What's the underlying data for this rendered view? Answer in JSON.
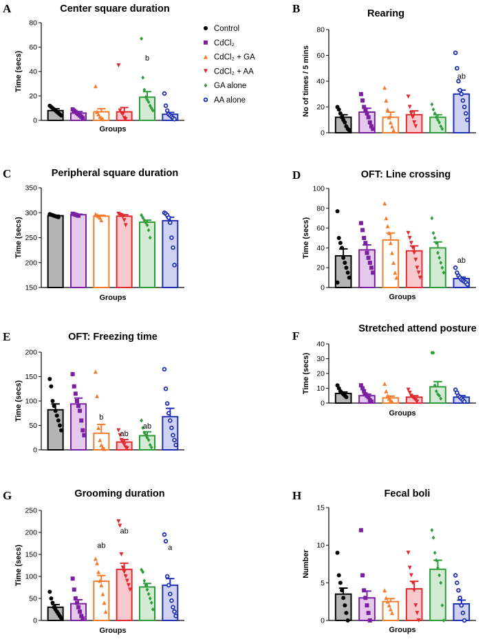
{
  "legend": {
    "entries": [
      {
        "label": "Control",
        "color": "#000000",
        "marker": "circle"
      },
      {
        "label": "CdCl₂",
        "color": "#7b1fa2",
        "marker": "square"
      },
      {
        "label": "CdCl₂ + GA",
        "color": "#f57c2b",
        "marker": "triangle-up"
      },
      {
        "label": "CdCl₂ + AA",
        "color": "#e0282e",
        "marker": "triangle-down"
      },
      {
        "label": "GA alone",
        "color": "#2e9c3a",
        "marker": "diamond"
      },
      {
        "label": "AA alone",
        "color": "#1d2fb5",
        "marker": "circle-open"
      }
    ]
  },
  "group_fill_colors": [
    "#b5b5b5",
    "#e3c9ea",
    "#ffffff",
    "#f8c9cc",
    "#d3ebd3",
    "#cfd3f2"
  ],
  "chart_data": [
    {
      "panel": "A",
      "type": "bar",
      "title": "Center square duration",
      "xlabel": "Groups",
      "ylabel": "Time (secs)",
      "ylim": [
        0,
        80
      ],
      "yticks": [
        0,
        20,
        40,
        60,
        80
      ],
      "means": [
        8,
        6,
        7,
        7,
        19,
        5
      ],
      "sem": [
        1.5,
        1.2,
        2.5,
        3.5,
        4.5,
        1.5
      ],
      "points": [
        [
          12,
          11,
          10,
          9,
          8,
          7,
          6,
          5,
          4
        ],
        [
          9,
          8,
          7,
          6,
          5,
          4,
          3,
          2
        ],
        [
          28,
          7,
          5,
          3,
          2,
          1
        ],
        [
          45,
          8,
          6,
          5,
          2,
          1
        ],
        [
          67,
          35,
          25,
          19,
          17,
          15,
          12,
          10,
          8
        ],
        [
          22,
          12,
          8,
          5,
          4,
          3,
          2,
          1
        ]
      ],
      "annotations": [
        {
          "group": 4,
          "text": "b",
          "value": 49
        }
      ],
      "show_legend": true
    },
    {
      "panel": "B",
      "type": "bar",
      "title": "Rearing",
      "xlabel": "",
      "ylabel": "No of times / 5 mins",
      "ylim": [
        0,
        80
      ],
      "yticks": [
        0,
        20,
        40,
        60,
        80
      ],
      "means": [
        12,
        16,
        12,
        14,
        12,
        30
      ],
      "sem": [
        2,
        3,
        4,
        3,
        2,
        3
      ],
      "points": [
        [
          20,
          18,
          15,
          12,
          10,
          8,
          5,
          3,
          2
        ],
        [
          30,
          25,
          20,
          18,
          15,
          12,
          8,
          5,
          3
        ],
        [
          35,
          25,
          18,
          12,
          8,
          5,
          2
        ],
        [
          28,
          20,
          15,
          12,
          8,
          5
        ],
        [
          22,
          18,
          15,
          12,
          10,
          8,
          5,
          3
        ],
        [
          62,
          50,
          40,
          33,
          30,
          25,
          20,
          15,
          10
        ]
      ],
      "annotations": [
        {
          "group": 5,
          "text": "ab",
          "value": 42
        }
      ],
      "show_legend": false
    },
    {
      "panel": "C",
      "type": "bar",
      "title": "Peripheral square duration",
      "xlabel": "Groups",
      "ylabel": "Time (secs)",
      "ylim": [
        150,
        350
      ],
      "yticks": [
        150,
        200,
        250,
        300,
        350
      ],
      "means": [
        294,
        296,
        293,
        293,
        281,
        284
      ],
      "sem": [
        1,
        1,
        2,
        3,
        4,
        7
      ],
      "points": [
        [
          297,
          296,
          295,
          294,
          293,
          292,
          291
        ],
        [
          298,
          297,
          296,
          295,
          294
        ],
        [
          297,
          295,
          293,
          290,
          285
        ],
        [
          298,
          296,
          295,
          292,
          285,
          275
        ],
        [
          295,
          290,
          285,
          280,
          275,
          265,
          250
        ],
        [
          300,
          298,
          295,
          290,
          280,
          250,
          230,
          195
        ]
      ],
      "annotations": [],
      "show_legend": false
    },
    {
      "panel": "D",
      "type": "bar",
      "title": "OFT: Line crossing",
      "xlabel": "Groups",
      "ylabel": "Time (secs)",
      "ylim": [
        0,
        100
      ],
      "yticks": [
        0,
        20,
        40,
        60,
        80,
        100
      ],
      "means": [
        32,
        38,
        48,
        37,
        40,
        9
      ],
      "sem": [
        7,
        5,
        7,
        5,
        6,
        1.5
      ],
      "points": [
        [
          77,
          50,
          45,
          40,
          30,
          25,
          20,
          15,
          10,
          5
        ],
        [
          65,
          58,
          50,
          45,
          35,
          30,
          25,
          20,
          15
        ],
        [
          85,
          70,
          62,
          55,
          45,
          35,
          25,
          15,
          10
        ],
        [
          55,
          50,
          45,
          40,
          35,
          28,
          20,
          15,
          10
        ],
        [
          70,
          55,
          50,
          45,
          35,
          30,
          25,
          20,
          15
        ],
        [
          20,
          15,
          12,
          10,
          8,
          7,
          6,
          5,
          3
        ]
      ],
      "annotations": [
        {
          "group": 5,
          "text": "ab",
          "value": 25
        }
      ],
      "show_legend": false
    },
    {
      "panel": "E",
      "type": "bar",
      "title": "OFT: Freezing time",
      "xlabel": "",
      "ylabel": "Time (secs)",
      "ylim": [
        0,
        200
      ],
      "yticks": [
        0,
        50,
        100,
        150,
        200
      ],
      "means": [
        82,
        94,
        34,
        16,
        29,
        68
      ],
      "sem": [
        12,
        12,
        18,
        5,
        8,
        17
      ],
      "points": [
        [
          145,
          130,
          100,
          90,
          80,
          70,
          60,
          50,
          40
        ],
        [
          155,
          130,
          115,
          100,
          90,
          80,
          60,
          40,
          30
        ],
        [
          160,
          110,
          45,
          20,
          10,
          5,
          2
        ],
        [
          40,
          30,
          20,
          15,
          10,
          5,
          3
        ],
        [
          60,
          45,
          35,
          30,
          25,
          20,
          10,
          5
        ],
        [
          165,
          125,
          95,
          75,
          60,
          45,
          30,
          20,
          10
        ]
      ],
      "annotations": [
        {
          "group": 2,
          "text": "b",
          "value": 62
        },
        {
          "group": 3,
          "text": "ab",
          "value": 28
        },
        {
          "group": 4,
          "text": "ab",
          "value": 44
        }
      ],
      "show_legend": false
    },
    {
      "panel": "F",
      "type": "bar",
      "title": "Stretched attend posture",
      "xlabel": "Groups",
      "ylabel": "Time (secs)",
      "ylim": [
        0,
        40
      ],
      "yticks": [
        0,
        10,
        20,
        30,
        40
      ],
      "means": [
        6.5,
        5,
        3.5,
        4,
        11,
        4
      ],
      "sem": [
        1,
        1,
        1.2,
        1,
        3.5,
        1
      ],
      "points": [
        [
          12,
          10,
          8,
          7,
          6,
          5,
          4
        ],
        [
          12,
          10,
          8,
          6,
          5,
          4,
          2,
          1
        ],
        [
          13,
          8,
          5,
          3,
          2,
          1
        ],
        [
          9,
          7,
          5,
          4,
          3,
          2,
          1
        ],
        [
          34,
          34,
          12,
          8,
          6,
          5,
          3
        ],
        [
          9,
          7,
          5,
          4,
          3,
          2,
          1
        ]
      ],
      "annotations": [],
      "show_legend": false
    },
    {
      "panel": "G",
      "type": "bar",
      "title": "Grooming duration",
      "xlabel": "Groups",
      "ylabel": "Time (secs)",
      "ylim": [
        0,
        250
      ],
      "yticks": [
        0,
        50,
        100,
        150,
        200,
        250
      ],
      "means": [
        30,
        38,
        89,
        116,
        76,
        80
      ],
      "sem": [
        6,
        9,
        13,
        14,
        8,
        15
      ],
      "points": [
        [
          65,
          50,
          40,
          30,
          25,
          20,
          15,
          10,
          5
        ],
        [
          95,
          70,
          50,
          40,
          30,
          20,
          10,
          5
        ],
        [
          140,
          130,
          110,
          90,
          80,
          60,
          40,
          20
        ],
        [
          225,
          215,
          150,
          120,
          110,
          100,
          90,
          80,
          70
        ],
        [
          115,
          110,
          90,
          80,
          70,
          60,
          50,
          40,
          25
        ],
        [
          195,
          180,
          100,
          80,
          60,
          45,
          30,
          20,
          10
        ]
      ],
      "annotations": [
        {
          "group": 2,
          "text": "ab",
          "value": 165
        },
        {
          "group": 3,
          "text": "ab",
          "value": 198
        },
        {
          "group": 5,
          "text": "a",
          "value": 160
        }
      ],
      "show_legend": false
    },
    {
      "panel": "H",
      "type": "bar",
      "title": "Fecal boli",
      "xlabel": "Groups",
      "ylabel": "Number",
      "ylim": [
        0,
        15
      ],
      "yticks": [
        0,
        5,
        10,
        15
      ],
      "means": [
        3.5,
        3,
        2.5,
        4.2,
        6.8,
        2.2
      ],
      "sem": [
        0.8,
        0.9,
        0.4,
        1,
        1.2,
        0.5
      ],
      "points": [
        [
          9,
          6,
          5,
          4,
          3,
          2,
          1,
          0
        ],
        [
          12,
          6,
          4,
          3,
          2,
          1,
          0
        ],
        [
          4,
          3,
          2.5,
          2,
          1.5,
          1
        ],
        [
          9,
          7,
          6,
          5,
          4,
          2,
          1,
          0
        ],
        [
          12,
          11,
          9,
          8,
          7,
          6,
          5,
          2,
          0
        ],
        [
          6,
          5,
          4,
          3,
          2,
          1,
          0
        ]
      ],
      "annotations": [],
      "show_legend": false
    }
  ]
}
